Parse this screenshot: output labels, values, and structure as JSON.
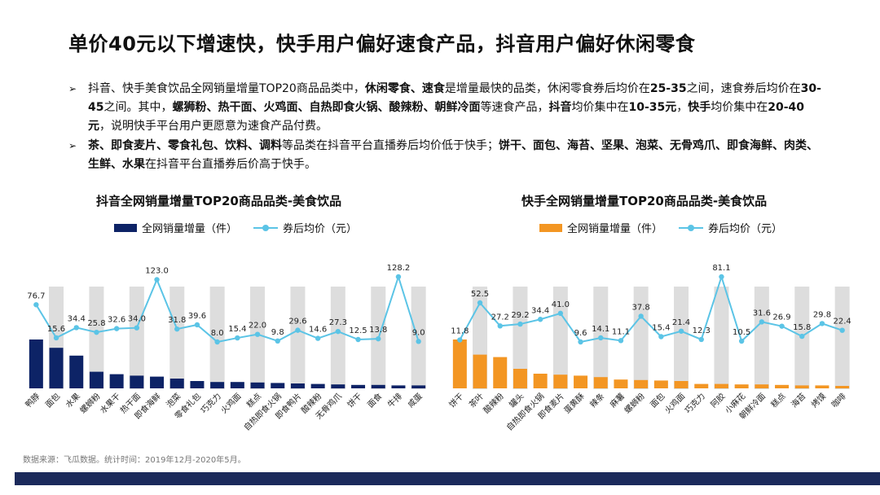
{
  "title": "单价40元以下增速快，快手用户偏好速食产品，抖音用户偏好休闲零食",
  "bullets": [
    {
      "arrow": "➢",
      "segments": [
        {
          "t": "抖音、快手美食饮品全网销量增量TOP20商品品类中，",
          "b": false
        },
        {
          "t": "休闲零食、速食",
          "b": true
        },
        {
          "t": "是增量最快的品类，休闲零食券后均价在",
          "b": false
        },
        {
          "t": "25-35",
          "b": true
        },
        {
          "t": "之间，速食券后均价在",
          "b": false
        },
        {
          "t": "30-45",
          "b": true
        },
        {
          "t": "之间。其中，",
          "b": false
        },
        {
          "t": "螺狮粉、热干面、火鸡面、自热即食火锅、酸辣粉、朝鲜冷面",
          "b": true
        },
        {
          "t": "等速食产品，",
          "b": false
        },
        {
          "t": "抖音",
          "b": true
        },
        {
          "t": "均价集中在",
          "b": false
        },
        {
          "t": "10-35元",
          "b": true
        },
        {
          "t": "，",
          "b": false
        },
        {
          "t": "快手",
          "b": true
        },
        {
          "t": "均价集中在",
          "b": false
        },
        {
          "t": "20-40元",
          "b": true
        },
        {
          "t": "，说明快手平台用户更愿意为速食产品付费。",
          "b": false
        }
      ]
    },
    {
      "arrow": "➢",
      "segments": [
        {
          "t": "茶、即食麦片、零食礼包、饮料、调料",
          "b": true
        },
        {
          "t": "等品类在抖音平台直播券后均价低于快手；",
          "b": false
        },
        {
          "t": "饼干、面包、海苔、坚果、泡菜、无骨鸡爪、即食海鲜、肉类、生鲜、水果",
          "b": true
        },
        {
          "t": "在抖音平台直播券后价高于快手。",
          "b": false
        }
      ]
    }
  ],
  "legend": {
    "bar": "全网销量增量（件）",
    "line": "券后均价（元）"
  },
  "source": "数据来源：飞瓜数据。统计时间：2019年12月-2020年5月。",
  "chart_data": [
    {
      "type": "bar+line",
      "title": "抖音全网销量增量TOP20商品品类-美食饮品",
      "bar_color": "#0d2366",
      "line_color": "#5bc4e6",
      "categories": [
        "鸭脖",
        "面包",
        "水果",
        "螺蛳粉",
        "水果干",
        "热干面",
        "即食海鲜",
        "泡菜",
        "零食礼包",
        "巧克力",
        "火鸡面",
        "糕点",
        "自热即食火锅",
        "即食鸭片",
        "酸辣粉",
        "无骨鸡爪",
        "饼干",
        "面食",
        "牛排",
        "咸蛋"
      ],
      "series": [
        {
          "name": "全网销量增量（件）",
          "kind": "bar",
          "values": [
            100,
            83,
            67,
            34,
            29,
            26,
            24,
            20,
            15,
            13,
            13,
            12,
            11,
            10,
            9,
            8,
            7,
            7,
            6,
            6
          ]
        },
        {
          "name": "券后均价（元）",
          "kind": "line",
          "values": [
            76.7,
            15.6,
            34.4,
            25.8,
            32.6,
            34.0,
            123.0,
            31.8,
            39.6,
            8.0,
            15.4,
            22.0,
            9.8,
            29.6,
            14.6,
            27.3,
            12.5,
            13.8,
            128.2,
            9.0
          ]
        }
      ],
      "bar_unit_note": "relative"
    },
    {
      "type": "bar+line",
      "title": "快手全网销量增量TOP20商品品类-美食饮品",
      "bar_color": "#f39623",
      "line_color": "#5bc4e6",
      "categories": [
        "饼干",
        "茶叶",
        "酸辣粉",
        "罐头",
        "自热即食火锅",
        "即食麦片",
        "蛋黄酥",
        "辣条",
        "麻薯",
        "螺蛳粉",
        "面包",
        "火鸡面",
        "巧克力",
        "阿胶",
        "小麻花",
        "朝鲜冷面",
        "糕点",
        "海苔",
        "烤馍",
        "咖啡"
      ],
      "series": [
        {
          "name": "全网销量增量（件）",
          "kind": "bar",
          "values": [
            100,
            69,
            64,
            40,
            30,
            28,
            26,
            23,
            18,
            17,
            16,
            15,
            9,
            9,
            8,
            8,
            7,
            6,
            6,
            5
          ]
        },
        {
          "name": "券后均价（元）",
          "kind": "line",
          "values": [
            11.8,
            52.5,
            27.2,
            29.2,
            34.4,
            41.0,
            9.6,
            14.1,
            11.1,
            37.8,
            15.4,
            21.4,
            12.3,
            81.1,
            10.5,
            31.6,
            26.9,
            15.8,
            29.8,
            22.4
          ]
        }
      ]
    }
  ]
}
